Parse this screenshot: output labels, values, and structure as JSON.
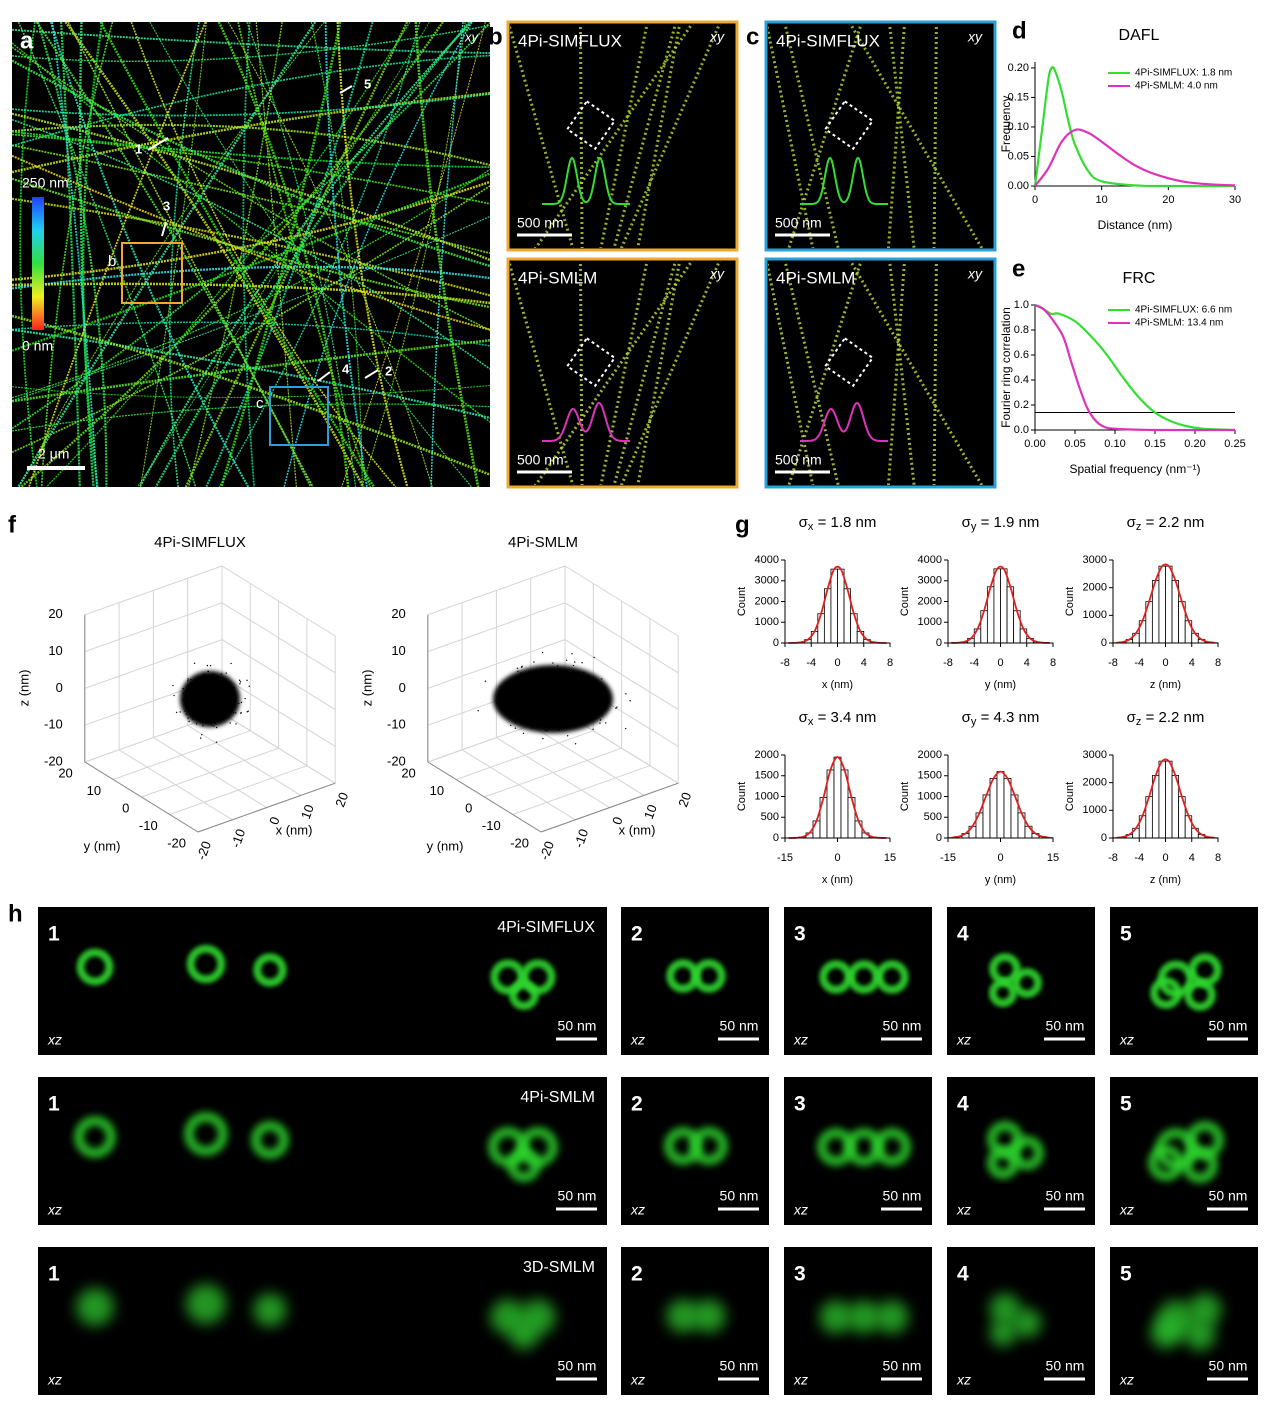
{
  "panels": {
    "a": {
      "label": "a",
      "view": "xy",
      "colorbar": {
        "max_label": "250 nm",
        "min_label": "0 nm"
      },
      "scalebar": "2 μm",
      "box_labels": [
        "b",
        "c"
      ],
      "profiles": [
        "1",
        "2",
        "3",
        "4",
        "5"
      ]
    },
    "b": {
      "label": "b",
      "border_color": "#f0a830",
      "images": [
        {
          "title": "4Pi-SIMFLUX",
          "view": "xy",
          "scalebar": "500 nm"
        },
        {
          "title": "4Pi-SMLM",
          "view": "xy",
          "scalebar": "500 nm"
        }
      ]
    },
    "c": {
      "label": "c",
      "border_color": "#2a9fd8",
      "images": [
        {
          "title": "4Pi-SIMFLUX",
          "view": "xy",
          "scalebar": "500 nm"
        },
        {
          "title": "4Pi-SMLM",
          "view": "xy",
          "scalebar": "500 nm"
        }
      ]
    },
    "d": {
      "label": "d"
    },
    "e": {
      "label": "e"
    },
    "f": {
      "label": "f",
      "plots": [
        {
          "title": "4Pi-SIMFLUX",
          "xlabel": "x (nm)",
          "ylabel": "y (nm)",
          "zlabel": "z (nm)",
          "xlim": [
            -20,
            20
          ],
          "ylim": [
            -20,
            20
          ],
          "zlim": [
            -20,
            20
          ],
          "xticks": [
            -20,
            -10,
            0,
            10,
            20
          ],
          "yticks": [
            -20,
            -10,
            0,
            10,
            20
          ],
          "zticks": [
            -20,
            -10,
            0,
            10,
            20
          ]
        },
        {
          "title": "4Pi-SMLM",
          "xlabel": "x (nm)",
          "ylabel": "y (nm)",
          "zlabel": "z (nm)",
          "xlim": [
            -20,
            20
          ],
          "ylim": [
            -20,
            20
          ],
          "zlim": [
            -20,
            20
          ],
          "xticks": [
            -20,
            -10,
            0,
            10,
            20
          ],
          "yticks": [
            -20,
            -10,
            0,
            10,
            20
          ],
          "zticks": [
            -20,
            -10,
            0,
            10,
            20
          ]
        }
      ]
    },
    "g": {
      "label": "g"
    },
    "h": {
      "label": "h",
      "view": "xz",
      "scalebar": "50 nm",
      "rows": [
        {
          "method": "4Pi-SIMFLUX",
          "panels": [
            "1",
            "2",
            "3",
            "4",
            "5"
          ]
        },
        {
          "method": "4Pi-SMLM",
          "panels": [
            "1",
            "2",
            "3",
            "4",
            "5"
          ]
        },
        {
          "method": "3D-SMLM",
          "panels": [
            "1",
            "2",
            "3",
            "4",
            "5"
          ]
        }
      ]
    }
  },
  "chart_data": [
    {
      "type": "line",
      "title": "DAFL",
      "xlabel": "Distance (nm)",
      "ylabel": "Frequency",
      "xlim": [
        0,
        30
      ],
      "ylim": [
        0,
        0.21
      ],
      "xticks": [
        0,
        10,
        20,
        30
      ],
      "yticks": [
        {
          "value": 0,
          "label": "0.00"
        },
        0.05,
        {
          "value": 0.1,
          "label": "0.10"
        },
        0.15,
        {
          "value": 0.2,
          "label": "0.20"
        }
      ],
      "series": [
        {
          "name": "4Pi-SIMFLUX: 1.8 nm",
          "color": "#33dd33",
          "x": [
            0,
            1,
            2,
            2.5,
            3,
            4,
            5,
            6,
            8,
            10,
            15,
            20,
            30
          ],
          "values": [
            0,
            0.09,
            0.18,
            0.2,
            0.195,
            0.16,
            0.11,
            0.07,
            0.025,
            0.008,
            0.001,
            0,
            0
          ]
        },
        {
          "name": "4Pi-SMLM: 4.0 nm",
          "color": "#dd33bb",
          "x": [
            0,
            2,
            4,
            6,
            8,
            10,
            12,
            15,
            18,
            22,
            26,
            30
          ],
          "values": [
            0,
            0.03,
            0.075,
            0.095,
            0.09,
            0.075,
            0.058,
            0.035,
            0.02,
            0.008,
            0.003,
            0.001
          ]
        }
      ]
    },
    {
      "type": "line",
      "title": "FRC",
      "xlabel": "Spatial frequency (nm⁻¹)",
      "ylabel": "Fourier ring correlation",
      "xlim": [
        0,
        0.25
      ],
      "ylim": [
        0,
        1
      ],
      "xticks": [
        {
          "value": 0,
          "label": "0.00"
        },
        0.05,
        {
          "value": 0.1,
          "label": "0.10"
        },
        0.15,
        {
          "value": 0.2,
          "label": "0.20"
        },
        0.25
      ],
      "yticks": [
        {
          "value": 0,
          "label": "0.0"
        },
        0.2,
        0.4,
        0.6,
        0.8,
        {
          "value": 1,
          "label": "1.0"
        }
      ],
      "threshold": 0.14,
      "series": [
        {
          "name": "4Pi-SIMFLUX: 6.6 nm",
          "color": "#33dd33",
          "x": [
            0,
            0.01,
            0.02,
            0.03,
            0.05,
            0.07,
            0.09,
            0.11,
            0.13,
            0.15,
            0.17,
            0.19,
            0.21,
            0.25
          ],
          "values": [
            1,
            0.97,
            0.93,
            0.93,
            0.87,
            0.75,
            0.6,
            0.42,
            0.26,
            0.14,
            0.07,
            0.03,
            0.01,
            0
          ]
        },
        {
          "name": "4Pi-SMLM: 13.4 nm",
          "color": "#dd33bb",
          "x": [
            0,
            0.01,
            0.02,
            0.035,
            0.045,
            0.055,
            0.065,
            0.075,
            0.085,
            0.1,
            0.15,
            0.25
          ],
          "values": [
            1,
            0.97,
            0.9,
            0.75,
            0.55,
            0.35,
            0.18,
            0.08,
            0.03,
            0.01,
            0,
            0
          ]
        }
      ]
    },
    {
      "type": "histogram",
      "title": {
        "symbol": "σ",
        "sub": "x",
        "text": " = 1.8 nm"
      },
      "xlabel": "x (nm)",
      "ylabel": "Count",
      "color": "#000000",
      "fit_color": "#e02020",
      "bins": [
        -8,
        -7,
        -6,
        -5,
        -4,
        -3,
        -2,
        -1,
        0,
        1,
        2,
        3,
        4,
        5,
        6,
        7,
        8
      ],
      "values": [
        1,
        5,
        35,
        163,
        559,
        1410,
        2615,
        3560,
        3560,
        2615,
        1410,
        559,
        163,
        35,
        5,
        1
      ],
      "xlim": [
        -8,
        8
      ],
      "ylim": [
        0,
        4000
      ],
      "xticks": [
        -8,
        -4,
        0,
        4,
        8
      ],
      "yticks": [
        0,
        1000,
        2000,
        3000,
        4000
      ]
    },
    {
      "type": "histogram",
      "title": {
        "symbol": "σ",
        "sub": "y",
        "text": " = 1.9 nm"
      },
      "xlabel": "y (nm)",
      "ylabel": "Count",
      "color": "#000000",
      "fit_color": "#e02020",
      "bins": [
        -8,
        -7,
        -6,
        -5,
        -4,
        -3,
        -2,
        -1,
        0,
        1,
        2,
        3,
        4,
        5,
        6,
        7,
        8
      ],
      "values": [
        2,
        11,
        56,
        224,
        678,
        1556,
        2709,
        3574,
        3574,
        2709,
        1556,
        678,
        224,
        56,
        11,
        2
      ],
      "xlim": [
        -8,
        8
      ],
      "ylim": [
        0,
        4000
      ],
      "xticks": [
        -8,
        -4,
        0,
        4,
        8
      ],
      "yticks": [
        0,
        1000,
        2000,
        3000,
        4000
      ]
    },
    {
      "type": "histogram",
      "title": {
        "symbol": "σ",
        "sub": "z",
        "text": " = 2.2 nm"
      },
      "xlabel": "z (nm)",
      "ylabel": "Count",
      "color": "#000000",
      "fit_color": "#e02020",
      "bins": [
        -8,
        -7,
        -6,
        -5,
        -4,
        -3,
        -2,
        -1,
        0,
        1,
        2,
        3,
        4,
        5,
        6,
        7,
        8
      ],
      "values": [
        9,
        36,
        125,
        352,
        804,
        1494,
        2260,
        2777,
        2777,
        2260,
        1494,
        804,
        352,
        125,
        36,
        9
      ],
      "xlim": [
        -8,
        8
      ],
      "ylim": [
        0,
        3000
      ],
      "xticks": [
        -8,
        -4,
        0,
        4,
        8
      ],
      "yticks": [
        0,
        1000,
        2000,
        3000
      ]
    },
    {
      "type": "histogram",
      "title": {
        "symbol": "σ",
        "sub": "x",
        "text": " = 3.4 nm"
      },
      "xlabel": "x (nm)",
      "ylabel": "Count",
      "color": "#000000",
      "fit_color": "#e02020",
      "bins": [
        -15,
        -13,
        -11,
        -9,
        -7,
        -5,
        -3,
        -1,
        1,
        3,
        5,
        7,
        9,
        11,
        13,
        15
      ],
      "values": [
        0,
        4,
        26,
        122,
        411,
        976,
        1640,
        1950,
        1640,
        976,
        411,
        122,
        26,
        4,
        0
      ],
      "xlim": [
        -15,
        15
      ],
      "ylim": [
        0,
        2000
      ],
      "xticks": [
        -15,
        0,
        15
      ],
      "yticks": [
        0,
        500,
        1000,
        1500,
        2000
      ]
    },
    {
      "type": "histogram",
      "title": {
        "symbol": "σ",
        "sub": "y",
        "text": " = 4.3 nm"
      },
      "xlabel": "y (nm)",
      "ylabel": "Count",
      "color": "#000000",
      "fit_color": "#e02020",
      "bins": [
        -15,
        -13,
        -11,
        -9,
        -7,
        -5,
        -3,
        -1,
        1,
        3,
        5,
        7,
        9,
        11,
        13,
        15
      ],
      "values": [
        8,
        33,
        107,
        283,
        605,
        1038,
        1436,
        1600,
        1436,
        1038,
        605,
        283,
        107,
        33,
        8
      ],
      "xlim": [
        -15,
        15
      ],
      "ylim": [
        0,
        2000
      ],
      "xticks": [
        -15,
        0,
        15
      ],
      "yticks": [
        0,
        500,
        1000,
        1500,
        2000
      ]
    },
    {
      "type": "histogram",
      "title": {
        "symbol": "σ",
        "sub": "z",
        "text": " = 2.2 nm"
      },
      "xlabel": "z (nm)",
      "ylabel": "Count",
      "color": "#000000",
      "fit_color": "#e02020",
      "bins": [
        -8,
        -7,
        -6,
        -5,
        -4,
        -3,
        -2,
        -1,
        0,
        1,
        2,
        3,
        4,
        5,
        6,
        7,
        8
      ],
      "values": [
        9,
        36,
        125,
        352,
        804,
        1494,
        2260,
        2777,
        2777,
        2260,
        1494,
        804,
        352,
        125,
        36,
        9
      ],
      "xlim": [
        -8,
        8
      ],
      "ylim": [
        0,
        3000
      ],
      "xticks": [
        -8,
        -4,
        0,
        4,
        8
      ],
      "yticks": [
        0,
        1000,
        2000,
        3000
      ]
    }
  ]
}
